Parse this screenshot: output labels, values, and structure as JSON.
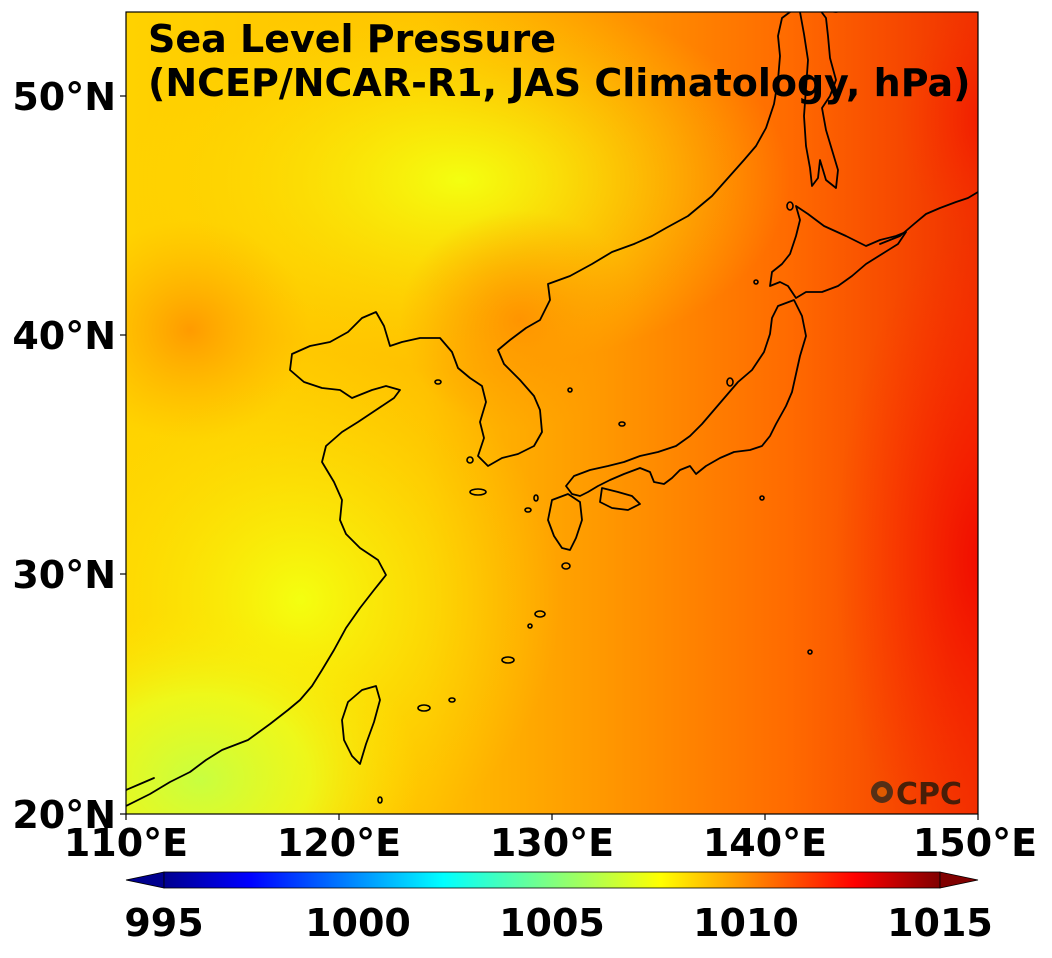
{
  "map": {
    "title_line1": "Sea Level Pressure",
    "title_line2": "(NCEP/NCAR-R1, JAS Climatology, hPa)",
    "logo": "CPC",
    "lon_ticks": [
      "110°E",
      "120°E",
      "130°E",
      "140°E",
      "150°E"
    ],
    "lat_ticks": [
      "50°N",
      "40°N",
      "30°N",
      "20°N"
    ],
    "extent": {
      "lon": [
        110,
        150
      ],
      "lat": [
        20,
        53.5
      ]
    }
  },
  "colorbar": {
    "labels": [
      "995",
      "1000",
      "1005",
      "1010",
      "1015"
    ],
    "range": [
      995,
      1015
    ],
    "colormap": "jet",
    "extend": "both"
  },
  "colors": {
    "low": "#00008f",
    "mid": "#80ff80",
    "high": "#800000"
  }
}
